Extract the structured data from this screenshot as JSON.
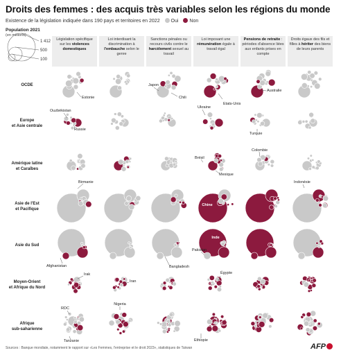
{
  "title": "Droits des femmes : des acquis très variables selon les régions du monde",
  "subtitle": "Existence de la législation indiquée dans 190 pays et territoires en 2022",
  "legend": {
    "yes": "Oui",
    "no": "Non",
    "yes_color": "#c9c9c9",
    "no_color": "#8c1a3e"
  },
  "population_legend": {
    "title": "Population 2021",
    "unit": "(en millions)",
    "values": [
      "1 412",
      "500",
      "100"
    ]
  },
  "columns": [
    {
      "pre": "Législation spécifique sur les ",
      "bold": "violences domestiques",
      "post": ""
    },
    {
      "pre": "Loi interdisant la discrimination à ",
      "bold": "l'embauche",
      "post": " selon le genre"
    },
    {
      "pre": "Sanctions pénales ou recours civils contre le ",
      "bold": "harcèlement",
      "post": " sexuel au travail"
    },
    {
      "pre": "Loi imposant une ",
      "bold": "rémunération",
      "post": " égale à travail égal"
    },
    {
      "pre": "",
      "bold": "Pensions de retraite",
      "post": " : périodes d'absence liées aux enfants prises en compte"
    },
    {
      "pre": "Droits égaux des fils et filles à ",
      "bold": "hériter",
      "post": " des biens de leurs parents"
    }
  ],
  "regions": [
    {
      "line1": "OCDE",
      "line2": ""
    },
    {
      "line1": "Europe",
      "line2": "et Asie centrale"
    },
    {
      "line1": "Amérique latine",
      "line2": "et Caraïbes"
    },
    {
      "line1": "Asie de l'Est",
      "line2": "et Pacifique"
    },
    {
      "line1": "Asie du Sud",
      "line2": ""
    },
    {
      "line1": "Moyen-Orient",
      "line2": "et Afrique du Nord"
    },
    {
      "line1": "Afrique",
      "line2": "sub-saharienne"
    }
  ],
  "annotations": [
    {
      "text": "Estonie"
    },
    {
      "text": "Japon"
    },
    {
      "text": "Chili"
    },
    {
      "text": "Etats-Unis"
    },
    {
      "text": "Australie"
    },
    {
      "text": "Ouzbékistan"
    },
    {
      "text": "Russie"
    },
    {
      "text": "Ukraine"
    },
    {
      "text": "Turquie"
    },
    {
      "text": "Brésil"
    },
    {
      "text": "Mexique"
    },
    {
      "text": "Colombie"
    },
    {
      "text": "Birmanie"
    },
    {
      "text": "Chine"
    },
    {
      "text": "Indonésie"
    },
    {
      "text": "Afghanistan"
    },
    {
      "text": "Bangladesh"
    },
    {
      "text": "Inde"
    },
    {
      "text": "Pakistan"
    },
    {
      "text": "Irak"
    },
    {
      "text": "Iran"
    },
    {
      "text": "Égypte"
    },
    {
      "text": "RDC"
    },
    {
      "text": "Nigeria"
    },
    {
      "text": "Tanzanie"
    },
    {
      "text": "Ethiopie"
    }
  ],
  "source": "Sources : Banque mondiale, notamment le rapport sur «Les Femmes, l'entreprise et le droit 2023», statistiques de Taïwan",
  "credit": "AFP",
  "chart_data": {
    "type": "bubble-matrix",
    "title": "Droits des femmes : des acquis très variables selon les régions du monde",
    "rows": [
      "OCDE",
      "Europe et Asie centrale",
      "Amérique latine et Caraïbes",
      "Asie de l'Est et Pacifique",
      "Asie du Sud",
      "Moyen-Orient et Afrique du Nord",
      "Afrique sub-saharienne"
    ],
    "columns": [
      "violences domestiques",
      "l'embauche",
      "harcèlement",
      "rémunération",
      "Pensions de retraite",
      "hériter"
    ],
    "size": "population 2021 (millions)",
    "labelled_countries": [
      {
        "country": "Estonie",
        "row": "OCDE",
        "column": "violences domestiques",
        "value": "Non"
      },
      {
        "country": "Japon",
        "row": "OCDE",
        "column": "harcèlement",
        "value": "Non"
      },
      {
        "country": "Chili",
        "row": "OCDE",
        "column": "harcèlement",
        "value": "Non"
      },
      {
        "country": "Etats-Unis",
        "row": "OCDE",
        "column": "rémunération",
        "value": "Non"
      },
      {
        "country": "Australie",
        "row": "OCDE",
        "column": "Pensions de retraite",
        "value": "Non"
      },
      {
        "country": "Ouzbékistan",
        "row": "Europe et Asie centrale",
        "column": "violences domestiques",
        "value": "Non"
      },
      {
        "country": "Russie",
        "row": "Europe et Asie centrale",
        "column": "violences domestiques",
        "value": "Non"
      },
      {
        "country": "Ukraine",
        "row": "Europe et Asie centrale",
        "column": "rémunération",
        "value": "Non"
      },
      {
        "country": "Turquie",
        "row": "Europe et Asie centrale",
        "column": "Pensions de retraite",
        "value": "Non"
      },
      {
        "country": "Brésil",
        "row": "Amérique latine et Caraïbes",
        "column": "rémunération",
        "value": "Non"
      },
      {
        "country": "Mexique",
        "row": "Amérique latine et Caraïbes",
        "column": "rémunération",
        "value": "Non"
      },
      {
        "country": "Colombie",
        "row": "Amérique latine et Caraïbes",
        "column": "Pensions de retraite",
        "value": "Non"
      },
      {
        "country": "Birmanie",
        "row": "Asie de l'Est et Pacifique",
        "column": "violences domestiques",
        "value": "Non"
      },
      {
        "country": "Chine",
        "row": "Asie de l'Est et Pacifique",
        "column": "rémunération",
        "value": "Non"
      },
      {
        "country": "Indonésie",
        "row": "Asie de l'Est et Pacifique",
        "column": "hériter",
        "value": "Non"
      },
      {
        "country": "Afghanistan",
        "row": "Asie du Sud",
        "column": "violences domestiques",
        "value": "Non"
      },
      {
        "country": "Bangladesh",
        "row": "Asie du Sud",
        "column": "harcèlement",
        "value": "Non"
      },
      {
        "country": "Inde",
        "row": "Asie du Sud",
        "column": "rémunération",
        "value": "Non"
      },
      {
        "country": "Pakistan",
        "row": "Asie du Sud",
        "column": "rémunération",
        "value": "Non"
      },
      {
        "country": "Irak",
        "row": "Moyen-Orient et Afrique du Nord",
        "column": "violences domestiques",
        "value": "Non"
      },
      {
        "country": "Iran",
        "row": "Moyen-Orient et Afrique du Nord",
        "column": "harcèlement",
        "value": "Non"
      },
      {
        "country": "Égypte",
        "row": "Moyen-Orient et Afrique du Nord",
        "column": "rémunération",
        "value": "Non"
      },
      {
        "country": "RDC",
        "row": "Afrique sub-saharienne",
        "column": "violences domestiques",
        "value": "Non"
      },
      {
        "country": "Nigeria",
        "row": "Afrique sub-saharienne",
        "column": "harcèlement",
        "value": "Non"
      },
      {
        "country": "Tanzanie",
        "row": "Afrique sub-saharienne",
        "column": "violences domestiques",
        "value": "Non"
      },
      {
        "country": "Ethiopie",
        "row": "Afrique sub-saharienne",
        "column": "rémunération",
        "value": "Non"
      }
    ]
  }
}
